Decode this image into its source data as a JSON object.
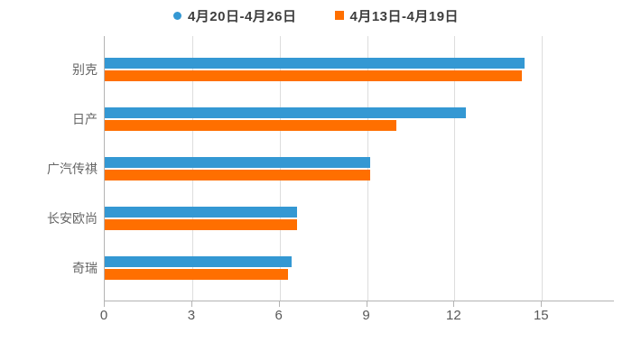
{
  "legend": {
    "items": [
      {
        "label": "4月20日-4月26日"
      },
      {
        "label": "4月13日-4月19日"
      }
    ]
  },
  "chart_data": {
    "type": "bar",
    "orientation": "horizontal",
    "categories": [
      "别克",
      "日产",
      "广汽传祺",
      "长安欧尚",
      "奇瑞"
    ],
    "series": [
      {
        "name": "4月20日-4月26日",
        "marker": "circle",
        "color": "#3498d3",
        "values": [
          14.4,
          12.4,
          9.1,
          6.6,
          6.4
        ]
      },
      {
        "name": "4月13日-4月19日",
        "marker": "square",
        "color": "#ff6f00",
        "values": [
          14.3,
          10.0,
          9.1,
          6.6,
          6.3
        ]
      }
    ],
    "xticks": [
      0,
      3,
      6,
      9,
      12,
      15
    ],
    "xlim": [
      0,
      17.5
    ],
    "grid": "vertical-gridlines-only",
    "legend_position": "top-center",
    "colors": {
      "axis_line": "#b3b3b3",
      "gridline": "#dddddd",
      "tick_label": "#595959",
      "category_label": "#666666",
      "legend_text": "#3d3d3d",
      "background": "#ffffff"
    }
  }
}
